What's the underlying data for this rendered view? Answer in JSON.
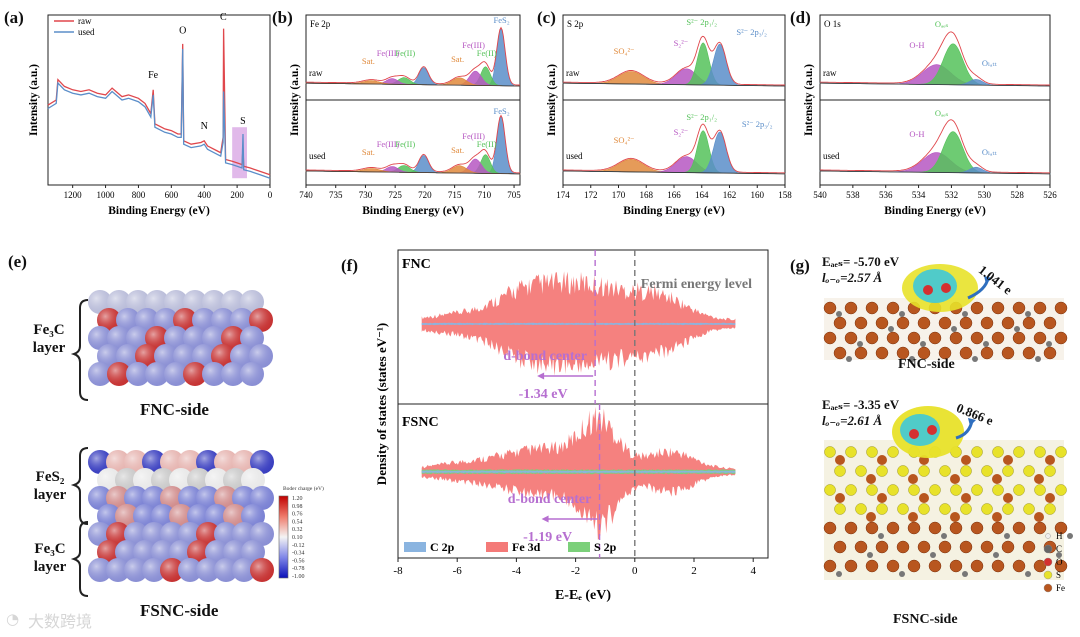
{
  "panel_labels": {
    "a": "(a)",
    "b": "(b)",
    "c": "(c)",
    "d": "(d)",
    "e": "(e)",
    "f": "(f)",
    "g": "(g)"
  },
  "colors": {
    "raw": "#e0474c",
    "used": "#5b8ec9",
    "green": "#55c25a",
    "purple": "#b657c2",
    "orange": "#e08a3c",
    "fe3d": "#f47a78",
    "c2p": "#8ab4e0",
    "s2p": "#7bd07a",
    "dband": "#b66fd0"
  },
  "chart_data": [
    {
      "id": "a",
      "type": "line",
      "title": "",
      "xlabel": "Binding Energy (eV)",
      "ylabel": "Intensity (a.u.)",
      "xlim": [
        1350,
        0
      ],
      "xticks": [
        "1200",
        "1000",
        "800",
        "600",
        "400",
        "200",
        "0"
      ],
      "legend": [
        "raw",
        "used"
      ],
      "series": [
        {
          "name": "raw",
          "x": [
            1350,
            1300,
            1290,
            1250,
            1200,
            1150,
            1100,
            1050,
            1000,
            960,
            900,
            860,
            800,
            760,
            725,
            710,
            700,
            640,
            600,
            560,
            540,
            531,
            525,
            480,
            420,
            400,
            380,
            320,
            300,
            285,
            282,
            270,
            230,
            200,
            170,
            164,
            160,
            120,
            60,
            0
          ],
          "values": [
            0.47,
            0.5,
            0.62,
            0.58,
            0.56,
            0.55,
            0.56,
            0.54,
            0.53,
            0.57,
            0.52,
            0.53,
            0.51,
            0.48,
            0.42,
            0.56,
            0.36,
            0.33,
            0.32,
            0.3,
            0.3,
            0.83,
            0.26,
            0.24,
            0.25,
            0.26,
            0.23,
            0.2,
            0.19,
            0.28,
            0.92,
            0.15,
            0.14,
            0.13,
            0.12,
            0.22,
            0.11,
            0.1,
            0.08,
            0.06
          ]
        },
        {
          "name": "used",
          "x": [
            1350,
            1300,
            1290,
            1250,
            1200,
            1150,
            1100,
            1050,
            1000,
            960,
            900,
            860,
            800,
            760,
            725,
            710,
            700,
            640,
            600,
            560,
            540,
            531,
            525,
            480,
            420,
            400,
            380,
            320,
            300,
            285,
            282,
            270,
            230,
            200,
            170,
            164,
            160,
            120,
            60,
            0
          ],
          "values": [
            0.45,
            0.48,
            0.6,
            0.56,
            0.54,
            0.53,
            0.54,
            0.52,
            0.51,
            0.55,
            0.5,
            0.51,
            0.49,
            0.46,
            0.4,
            0.53,
            0.34,
            0.31,
            0.3,
            0.28,
            0.28,
            0.8,
            0.24,
            0.22,
            0.23,
            0.24,
            0.21,
            0.18,
            0.17,
            0.25,
            0.55,
            0.13,
            0.12,
            0.11,
            0.1,
            0.3,
            0.09,
            0.08,
            0.06,
            0.04
          ]
        }
      ],
      "annotations": [
        {
          "text": "Fe",
          "x": 711
        },
        {
          "text": "O",
          "x": 531
        },
        {
          "text": "C",
          "x": 284
        },
        {
          "text": "N",
          "x": 400
        },
        {
          "text": "S",
          "x": 165
        }
      ],
      "highlight_x_range": [
        230,
        140
      ]
    },
    {
      "id": "b",
      "type": "area",
      "title": "Fe 2p",
      "xlabel": "Binding Energy (eV)",
      "ylabel": "Intensity (a.u.)",
      "xlim": [
        740,
        704
      ],
      "xticks": [
        "740",
        "735",
        "730",
        "725",
        "720",
        "715",
        "710",
        "705"
      ],
      "rows": [
        "raw",
        "used"
      ],
      "peaks": [
        {
          "name": "FeS₂",
          "center": 707.2,
          "height": 1.0,
          "color": "#5b8ec9"
        },
        {
          "name": "Fe(II)",
          "center": 709.8,
          "height": 0.33,
          "color": "#55c25a"
        },
        {
          "name": "Fe(III)",
          "center": 711.5,
          "height": 0.25,
          "color": "#b657c2"
        },
        {
          "name": "Sat.",
          "center": 714.2,
          "height": 0.13,
          "color": "#e08a3c"
        },
        {
          "name": "FeS₂",
          "center": 720.2,
          "height": 0.3,
          "color": "#5b8ec9"
        },
        {
          "name": "Fe(II)",
          "center": 723.5,
          "height": 0.12,
          "color": "#55c25a"
        },
        {
          "name": "Fe(III)",
          "center": 725.5,
          "height": 0.1,
          "color": "#b657c2"
        },
        {
          "name": "Sat.",
          "center": 729.0,
          "height": 0.06,
          "color": "#e08a3c"
        }
      ]
    },
    {
      "id": "c",
      "type": "area",
      "title": "S 2p",
      "xlabel": "Binding Energy (eV)",
      "ylabel": "Intensity (a.u.)",
      "xlim": [
        174,
        158
      ],
      "xticks": [
        "174",
        "172",
        "170",
        "168",
        "166",
        "164",
        "162",
        "160",
        "158"
      ],
      "rows": [
        "raw",
        "used"
      ],
      "peaks": [
        {
          "name": "SO₄²⁻",
          "center": 169.1,
          "height": 0.22,
          "color": "#e08a3c"
        },
        {
          "name": "S₂²⁻",
          "center": 165.1,
          "height": 0.28,
          "color": "#b657c2"
        },
        {
          "name": "S²⁻ 2p₁/₂",
          "center": 163.9,
          "height": 0.74,
          "color": "#55c25a"
        },
        {
          "name": "S²⁻ 2p₃/₂",
          "center": 162.7,
          "height": 0.72,
          "color": "#5b8ec9"
        }
      ]
    },
    {
      "id": "d",
      "type": "area",
      "title": "O 1s",
      "xlabel": "Binding Energy (eV)",
      "ylabel": "Intensity (a.u.)",
      "xlim": [
        540,
        526
      ],
      "xticks": [
        "540",
        "538",
        "536",
        "534",
        "532",
        "530",
        "528",
        "526"
      ],
      "rows": [
        "raw",
        "used"
      ],
      "peaks": [
        {
          "name": "O-H",
          "center": 532.9,
          "height": 0.35,
          "color": "#b657c2"
        },
        {
          "name": "Oₐₑₛ",
          "center": 531.9,
          "height": 0.72,
          "color": "#55c25a"
        },
        {
          "name": "Oₗₐₜₜ",
          "center": 530.5,
          "height": 0.1,
          "color": "#5b8ec9"
        }
      ]
    },
    {
      "id": "f",
      "type": "area",
      "title": "",
      "xlabel": "E-Eₑ (eV)",
      "ylabel": "Density of states (states eV⁻¹)",
      "xlim": [
        -8,
        4.5
      ],
      "xticks": [
        "-8",
        "-6",
        "-4",
        "-2",
        "0",
        "2",
        "4"
      ],
      "legend": [
        "C 2p",
        "Fe 3d",
        "S 2p"
      ],
      "subplots": [
        {
          "name": "FNC",
          "d_band_center": -1.34,
          "fermi_label": "Fermi energy level",
          "d_label": "d-bond center",
          "d_value": "-1.34 eV"
        },
        {
          "name": "FSNC",
          "d_band_center": -1.19,
          "d_label": "d-bond center",
          "d_value": "-1.19 eV"
        }
      ]
    }
  ],
  "panel_a": {
    "legend_raw": "raw",
    "legend_used": "used",
    "lbl_fe": "Fe",
    "lbl_o": "O",
    "lbl_c": "C",
    "lbl_n": "N",
    "lbl_s": "S"
  },
  "panel_b": {
    "row1": "raw",
    "row2": "used",
    "sat": "Sat.",
    "fe3": "Fe(III)",
    "fe2": "Fe(II)",
    "fes2": "FeS₂"
  },
  "panel_c": {
    "row1": "raw",
    "row2": "used",
    "so4": "SO₄²⁻",
    "s22": "S₂²⁻",
    "s2p12": "S²⁻ 2p₁/₂",
    "s2p32": "S²⁻ 2p₃/₂"
  },
  "panel_d": {
    "row1": "raw",
    "row2": "used",
    "oh": "O-H",
    "oads": "Oₐₑₛ",
    "olatt": "Oₗₐₜₜ"
  },
  "panel_e": {
    "fe3c_1": "Fe₃C",
    "layer": "layer",
    "fnc_side": "FNC-side",
    "fes2": "FeS₂",
    "fe3c_2": "Fe₃C",
    "fsnc_side": "FSNC-side",
    "cbar_title": "Boder charge (eV)",
    "cbar_ticks": [
      "1.20",
      "0.98",
      "0.76",
      "0.54",
      "0.32",
      "0.10",
      "-0.12",
      "-0.34",
      "-0.56",
      "-0.78",
      "-1.00"
    ]
  },
  "panel_g": {
    "top_eads": "Eₐₑₛ= -5.70 eV",
    "top_loo": "lₒ₋ₒ=2.57 Å",
    "top_e": "1.041 e",
    "top_side": "FNC-side",
    "bot_eads": "Eₐₑₛ= -3.35 eV",
    "bot_loo": "lₒ₋ₒ=2.61 Å",
    "bot_e": "0.866 e",
    "bot_side": "FSNC-side",
    "legend": [
      "H",
      "C",
      "O",
      "S",
      "Fe"
    ]
  },
  "watermark": "大数跨境"
}
